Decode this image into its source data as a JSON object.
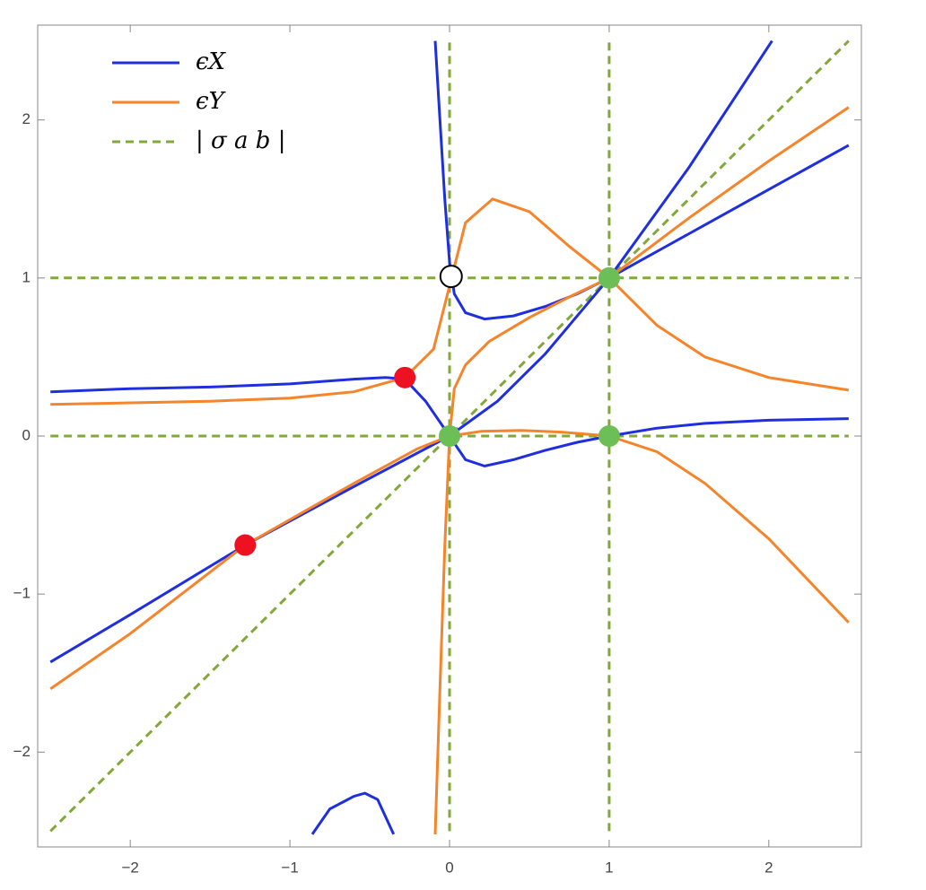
{
  "chart_data": {
    "type": "line",
    "xlim": [
      -2.58,
      2.58
    ],
    "ylim": [
      -2.6,
      2.6
    ],
    "xticks": [
      {
        "value": -2,
        "label": "−2"
      },
      {
        "value": -1,
        "label": "−1"
      },
      0,
      1,
      2
    ],
    "yticks": [
      {
        "value": -2,
        "label": "−2"
      },
      {
        "value": -1,
        "label": "−1"
      },
      0,
      1,
      2
    ],
    "legend": "top-left",
    "series": [
      {
        "name": "ϵX",
        "color": "#1f2fe0",
        "dashed": false,
        "x": [
          -2.5,
          -2,
          -1.5,
          -1,
          -0.6,
          -0.4,
          -0.28,
          -0.15,
          0,
          0.1,
          0.22,
          0.4,
          0.6,
          0.8,
          1,
          1.3,
          1.6,
          2,
          2.5,
          null,
          -0.09,
          -0.06,
          -0.03,
          0,
          0.03,
          0.1,
          0.22,
          0.4,
          0.6,
          0.8,
          1,
          1.5,
          2,
          2.5,
          null,
          -2.5,
          -2,
          -1.28,
          -0.6,
          0,
          0.3,
          0.6,
          1,
          1.5,
          2.02,
          null,
          -0.86,
          -0.75,
          -0.6,
          -0.53,
          -0.45,
          -0.35
        ],
        "values": [
          0.28,
          0.3,
          0.31,
          0.33,
          0.36,
          0.37,
          0.36,
          0.22,
          0,
          -0.15,
          -0.19,
          -0.15,
          -0.09,
          -0.04,
          0,
          0.05,
          0.08,
          0.1,
          0.11,
          null,
          2.5,
          2.0,
          1.5,
          1.1,
          0.9,
          0.78,
          0.74,
          0.76,
          0.82,
          0.9,
          1.0,
          1.28,
          1.56,
          1.84,
          null,
          -1.43,
          -1.13,
          -0.69,
          -0.32,
          0,
          0.22,
          0.52,
          1.0,
          1.7,
          2.5,
          null,
          -2.52,
          -2.36,
          -2.28,
          -2.26,
          -2.3,
          -2.52
        ]
      },
      {
        "name": "ϵY",
        "color": "#f5842a",
        "dashed": false,
        "x": [
          -2.5,
          -2,
          -1.5,
          -1,
          -0.6,
          -0.28,
          -0.1,
          0,
          0.1,
          0.27,
          0.5,
          0.75,
          1,
          1.3,
          1.6,
          2,
          2.5,
          null,
          -2.5,
          -2,
          -1.28,
          -0.6,
          -0.2,
          0,
          0.2,
          0.45,
          0.7,
          1,
          1.3,
          1.6,
          2,
          2.5,
          null,
          -0.09,
          -0.06,
          -0.03,
          0,
          0.03,
          0.1,
          0.25,
          0.5,
          0.75,
          1,
          1.5,
          2,
          2.5
        ],
        "values": [
          0.2,
          0.21,
          0.22,
          0.24,
          0.28,
          0.37,
          0.55,
          0.95,
          1.35,
          1.5,
          1.42,
          1.2,
          1.0,
          0.7,
          0.5,
          0.37,
          0.29,
          null,
          -1.6,
          -1.25,
          -0.69,
          -0.3,
          -0.08,
          0,
          0.03,
          0.035,
          0.025,
          0,
          -0.1,
          -0.3,
          -0.65,
          -1.18,
          null,
          -2.52,
          -1.6,
          -0.7,
          0,
          0.3,
          0.45,
          0.6,
          0.75,
          0.88,
          1.0,
          1.38,
          1.74,
          2.08
        ]
      },
      {
        "name": "| σ a b |",
        "color": "#83a83a",
        "dashed": true,
        "x": [
          -2.5,
          2.5,
          null,
          0,
          0,
          null,
          1,
          1,
          null,
          -2.5,
          2.5,
          null,
          -2.5,
          2.5
        ],
        "values": [
          -2.5,
          2.5,
          null,
          -2.5,
          2.5,
          null,
          -2.5,
          2.5,
          null,
          0,
          0,
          null,
          1,
          1
        ]
      }
    ],
    "markers": [
      {
        "x": -0.28,
        "y": 0.37,
        "color": "#ee1122"
      },
      {
        "x": -1.28,
        "y": -0.69,
        "color": "#ee1122"
      },
      {
        "x": 0,
        "y": 0,
        "color": "#6cbf56"
      },
      {
        "x": 1,
        "y": 1,
        "color": "#6cbf56"
      },
      {
        "x": 1,
        "y": 0,
        "color": "#6cbf56"
      },
      {
        "x": 0.01,
        "y": 1.01,
        "color": "#ffffff"
      }
    ]
  }
}
